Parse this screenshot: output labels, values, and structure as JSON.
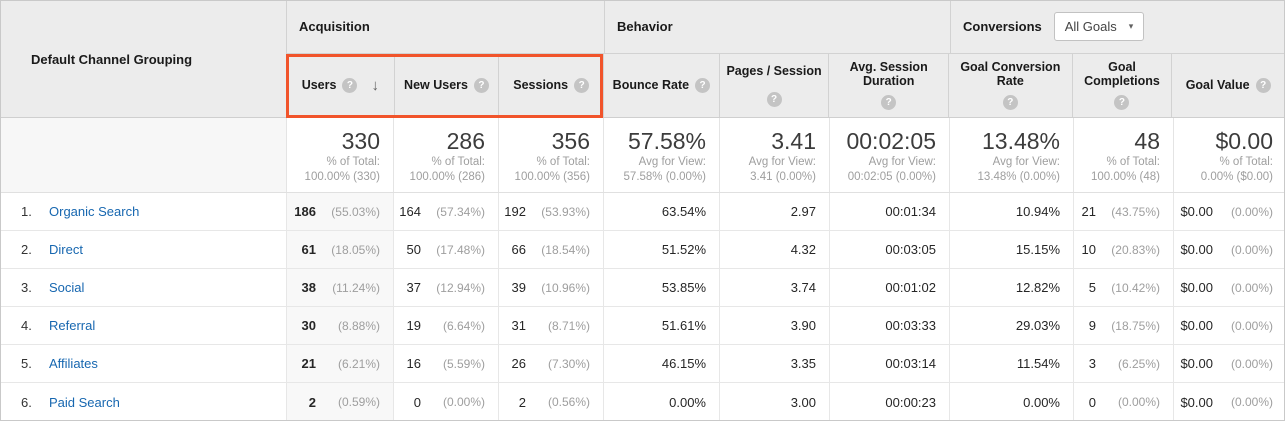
{
  "colors": {
    "highlight_box": "#f1542b",
    "link": "#1767b0",
    "header_bg": "#ececec"
  },
  "icons": {
    "help": "?",
    "sort_descending": "↓",
    "dropdown_arrow": "▾"
  },
  "header": {
    "row_dimension": "Default Channel Grouping",
    "groups": {
      "acquisition": "Acquisition",
      "behavior": "Behavior",
      "conversions": "Conversions"
    },
    "goals_selector": {
      "value": "All Goals"
    },
    "columns": [
      "Users",
      "New Users",
      "Sessions",
      "Bounce Rate",
      "Pages / Session",
      "Avg. Session Duration",
      "Goal Conversion Rate",
      "Goal Completions",
      "Goal Value"
    ],
    "sort": {
      "column": "Users",
      "direction": "descending"
    }
  },
  "summary": {
    "users": {
      "value": "330",
      "line1": "% of Total:",
      "line2": "100.00% (330)"
    },
    "new_users": {
      "value": "286",
      "line1": "% of Total:",
      "line2": "100.00% (286)"
    },
    "sessions": {
      "value": "356",
      "line1": "% of Total:",
      "line2": "100.00% (356)"
    },
    "bounce_rate": {
      "value": "57.58%",
      "line1": "Avg for View:",
      "line2": "57.58% (0.00%)"
    },
    "pages_per_session": {
      "value": "3.41",
      "line1": "Avg for View:",
      "line2": "3.41 (0.00%)"
    },
    "avg_session_duration": {
      "value": "00:02:05",
      "line1": "Avg for View:",
      "line2": "00:02:05 (0.00%)"
    },
    "goal_conversion_rate": {
      "value": "13.48%",
      "line1": "Avg for View:",
      "line2": "13.48% (0.00%)"
    },
    "goal_completions": {
      "value": "48",
      "line1": "% of Total:",
      "line2": "100.00% (48)"
    },
    "goal_value": {
      "value": "$0.00",
      "line1": "% of Total:",
      "line2": "0.00% ($0.00)"
    }
  },
  "rows": [
    {
      "rank": "1.",
      "channel": "Organic Search",
      "users": {
        "v": "186",
        "p": "(55.03%)"
      },
      "new_users": {
        "v": "164",
        "p": "(57.34%)"
      },
      "sessions": {
        "v": "192",
        "p": "(53.93%)"
      },
      "bounce_rate": "63.54%",
      "pages_per_session": "2.97",
      "avg_session_duration": "00:01:34",
      "goal_conversion_rate": "10.94%",
      "goal_completions": {
        "v": "21",
        "p": "(43.75%)"
      },
      "goal_value": {
        "v": "$0.00",
        "p": "(0.00%)"
      }
    },
    {
      "rank": "2.",
      "channel": "Direct",
      "users": {
        "v": "61",
        "p": "(18.05%)"
      },
      "new_users": {
        "v": "50",
        "p": "(17.48%)"
      },
      "sessions": {
        "v": "66",
        "p": "(18.54%)"
      },
      "bounce_rate": "51.52%",
      "pages_per_session": "4.32",
      "avg_session_duration": "00:03:05",
      "goal_conversion_rate": "15.15%",
      "goal_completions": {
        "v": "10",
        "p": "(20.83%)"
      },
      "goal_value": {
        "v": "$0.00",
        "p": "(0.00%)"
      }
    },
    {
      "rank": "3.",
      "channel": "Social",
      "users": {
        "v": "38",
        "p": "(11.24%)"
      },
      "new_users": {
        "v": "37",
        "p": "(12.94%)"
      },
      "sessions": {
        "v": "39",
        "p": "(10.96%)"
      },
      "bounce_rate": "53.85%",
      "pages_per_session": "3.74",
      "avg_session_duration": "00:01:02",
      "goal_conversion_rate": "12.82%",
      "goal_completions": {
        "v": "5",
        "p": "(10.42%)"
      },
      "goal_value": {
        "v": "$0.00",
        "p": "(0.00%)"
      }
    },
    {
      "rank": "4.",
      "channel": "Referral",
      "users": {
        "v": "30",
        "p": "(8.88%)"
      },
      "new_users": {
        "v": "19",
        "p": "(6.64%)"
      },
      "sessions": {
        "v": "31",
        "p": "(8.71%)"
      },
      "bounce_rate": "51.61%",
      "pages_per_session": "3.90",
      "avg_session_duration": "00:03:33",
      "goal_conversion_rate": "29.03%",
      "goal_completions": {
        "v": "9",
        "p": "(18.75%)"
      },
      "goal_value": {
        "v": "$0.00",
        "p": "(0.00%)"
      }
    },
    {
      "rank": "5.",
      "channel": "Affiliates",
      "users": {
        "v": "21",
        "p": "(6.21%)"
      },
      "new_users": {
        "v": "16",
        "p": "(5.59%)"
      },
      "sessions": {
        "v": "26",
        "p": "(7.30%)"
      },
      "bounce_rate": "46.15%",
      "pages_per_session": "3.35",
      "avg_session_duration": "00:03:14",
      "goal_conversion_rate": "11.54%",
      "goal_completions": {
        "v": "3",
        "p": "(6.25%)"
      },
      "goal_value": {
        "v": "$0.00",
        "p": "(0.00%)"
      }
    },
    {
      "rank": "6.",
      "channel": "Paid Search",
      "users": {
        "v": "2",
        "p": "(0.59%)"
      },
      "new_users": {
        "v": "0",
        "p": "(0.00%)"
      },
      "sessions": {
        "v": "2",
        "p": "(0.56%)"
      },
      "bounce_rate": "0.00%",
      "pages_per_session": "3.00",
      "avg_session_duration": "00:00:23",
      "goal_conversion_rate": "0.00%",
      "goal_completions": {
        "v": "0",
        "p": "(0.00%)"
      },
      "goal_value": {
        "v": "$0.00",
        "p": "(0.00%)"
      }
    }
  ]
}
